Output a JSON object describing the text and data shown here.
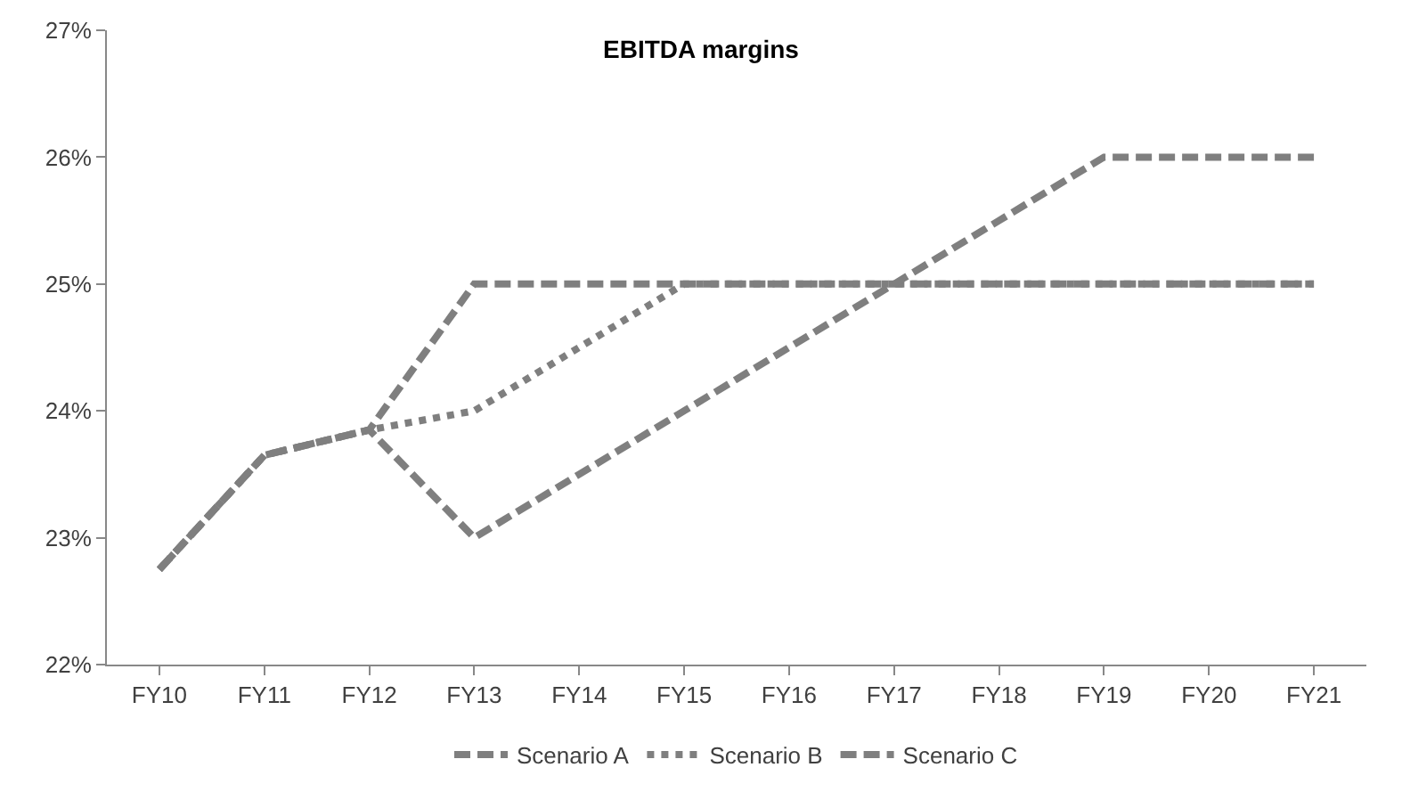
{
  "chart_data": {
    "type": "line",
    "title": "EBITDA margins",
    "categories": [
      "FY10",
      "FY11",
      "FY12",
      "FY13",
      "FY14",
      "FY15",
      "FY16",
      "FY17",
      "FY18",
      "FY19",
      "FY20",
      "FY21"
    ],
    "series": [
      {
        "name": "Scenario A",
        "color": "#7f7f7f",
        "line_style": "dashed",
        "values": [
          22.75,
          23.65,
          23.85,
          25,
          25,
          25,
          25,
          25,
          25,
          25,
          25,
          25
        ]
      },
      {
        "name": "Scenario B",
        "color": "#7f7f7f",
        "line_style": "dotted",
        "values": [
          22.75,
          23.65,
          23.85,
          24,
          24.5,
          25,
          25,
          25,
          25,
          25,
          25,
          25
        ]
      },
      {
        "name": "Scenario C",
        "color": "#7f7f7f",
        "line_style": "dashed",
        "values": [
          22.75,
          23.65,
          23.85,
          23,
          23.5,
          24,
          24.5,
          25,
          25.5,
          26,
          26,
          26
        ]
      }
    ],
    "ylim": [
      22,
      27
    ],
    "yticks": [
      {
        "value": 22,
        "label": "22%"
      },
      {
        "value": 23,
        "label": "23%"
      },
      {
        "value": 24,
        "label": "24%"
      },
      {
        "value": 25,
        "label": "25%"
      },
      {
        "value": 26,
        "label": "26%"
      },
      {
        "value": 27,
        "label": "27%"
      }
    ],
    "legend": "bottom",
    "marker": "none"
  }
}
